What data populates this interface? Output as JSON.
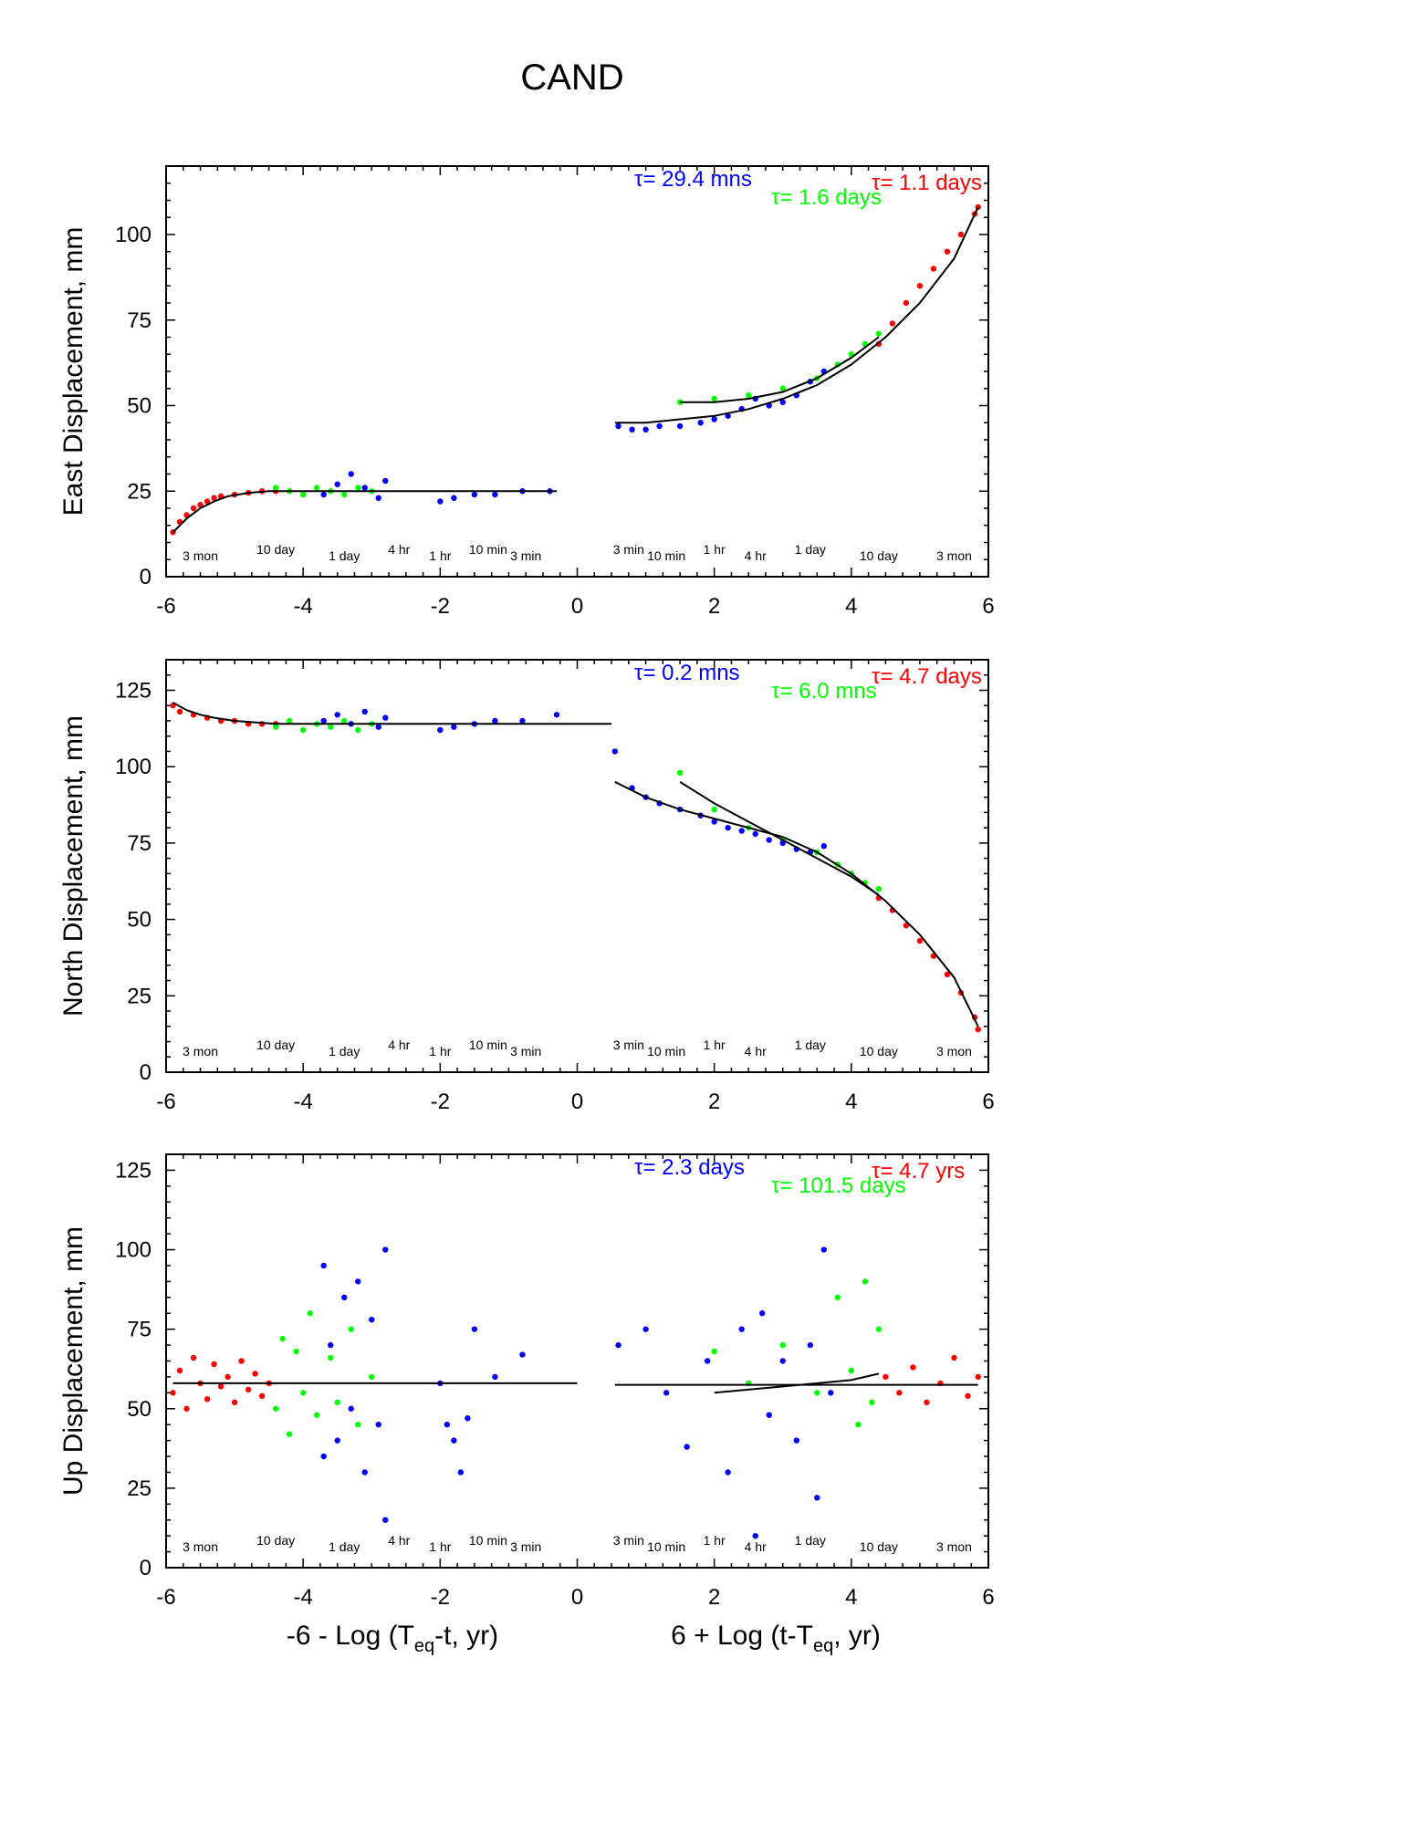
{
  "title": "CAND",
  "x_axis": {
    "left_label_parts": [
      "-6 - Log (T",
      "eq",
      "-t, yr)"
    ],
    "right_label_parts": [
      "6 + Log (t-T",
      "eq",
      ", yr)"
    ],
    "range": [
      -6,
      6
    ],
    "ticks": [
      -6,
      -4,
      -2,
      0,
      2,
      4,
      6
    ],
    "tick_labels": [
      "-6",
      "-4",
      "-2",
      "0",
      "2",
      "4",
      "6"
    ]
  },
  "time_markers": [
    {
      "x": -5.5,
      "label": "3 mon"
    },
    {
      "x": -4.4,
      "label": "10 day"
    },
    {
      "x": -3.4,
      "label": "1 day"
    },
    {
      "x": -2.6,
      "label": "4 hr"
    },
    {
      "x": -2.0,
      "label": "1 hr"
    },
    {
      "x": -1.3,
      "label": "10 min"
    },
    {
      "x": -0.75,
      "label": "3 min"
    },
    {
      "x": 0.75,
      "label": "3 min"
    },
    {
      "x": 1.3,
      "label": "10 min"
    },
    {
      "x": 2.0,
      "label": "1 hr"
    },
    {
      "x": 2.6,
      "label": "4 hr"
    },
    {
      "x": 3.4,
      "label": "1 day"
    },
    {
      "x": 4.4,
      "label": "10 day"
    },
    {
      "x": 5.5,
      "label": "3 mon"
    }
  ],
  "colors": {
    "red": "#ff0000",
    "green": "#00ff00",
    "blue": "#0000ff",
    "fit": "#000000"
  },
  "chart_data": [
    {
      "type": "scatter",
      "panel": "east",
      "ylabel": "East Displacement, mm",
      "ylim": [
        0,
        120
      ],
      "yticks": [
        0,
        25,
        50,
        75,
        100
      ],
      "tau_labels": [
        {
          "text": "τ= 29.4 mns",
          "color": "blue"
        },
        {
          "text": "τ= 1.6 days",
          "color": "green"
        },
        {
          "text": "τ= 1.1 days",
          "color": "red"
        }
      ],
      "series": [
        {
          "color": "red",
          "x": [
            -5.9,
            -5.8,
            -5.7,
            -5.6,
            -5.5,
            -5.4,
            -5.3,
            -5.2,
            -5.0,
            -4.8,
            -4.6,
            -4.4,
            4.4,
            4.6,
            4.8,
            5.0,
            5.2,
            5.4,
            5.6,
            5.8,
            5.85
          ],
          "y": [
            13,
            16,
            18,
            20,
            21,
            22,
            23,
            23.5,
            24,
            24.5,
            25,
            25,
            68,
            74,
            80,
            85,
            90,
            95,
            100,
            106,
            108
          ]
        },
        {
          "color": "green",
          "x": [
            -4.4,
            -4.2,
            -4.0,
            -3.8,
            -3.6,
            -3.4,
            -3.2,
            -3.0,
            1.5,
            2.0,
            2.5,
            3.0,
            3.5,
            3.8,
            4.0,
            4.2,
            4.4
          ],
          "y": [
            26,
            25,
            24,
            26,
            25,
            24,
            26,
            25,
            51,
            52,
            53,
            55,
            58,
            62,
            65,
            68,
            71
          ]
        },
        {
          "color": "blue",
          "x": [
            -3.7,
            -3.5,
            -3.3,
            -3.1,
            -2.9,
            -2.8,
            -2.0,
            -1.8,
            -1.5,
            -1.2,
            -0.8,
            -0.4,
            0.6,
            0.8,
            1.0,
            1.2,
            1.5,
            1.8,
            2.0,
            2.2,
            2.4,
            2.6,
            2.8,
            3.0,
            3.2,
            3.4,
            3.6
          ],
          "y": [
            24,
            27,
            30,
            26,
            23,
            28,
            22,
            23,
            24,
            24,
            25,
            25,
            44,
            43,
            43,
            44,
            44,
            45,
            46,
            47,
            49,
            52,
            50,
            51,
            53,
            57,
            60
          ]
        }
      ],
      "fits": [
        {
          "x": [
            -5.9,
            -5.7,
            -5.5,
            -5.3,
            -5.1,
            -4.8,
            -4.5,
            -4.0,
            -3.0,
            -2.0,
            -1.0,
            -0.3
          ],
          "y": [
            13,
            17,
            20,
            22,
            23.5,
            24.5,
            25,
            25,
            25,
            25,
            25,
            25
          ]
        },
        {
          "x": [
            0.55,
            1.0,
            1.5,
            2.0,
            2.5,
            3.0,
            3.5,
            4.0,
            4.5,
            5.0,
            5.5,
            5.85
          ],
          "y": [
            45,
            45,
            46,
            47,
            49,
            52,
            56,
            62,
            70,
            80,
            93,
            108
          ]
        },
        {
          "x": [
            1.5,
            2.0,
            2.5,
            3.0,
            3.5,
            4.0,
            4.4
          ],
          "y": [
            51,
            51,
            52,
            54,
            58,
            64,
            70
          ]
        }
      ]
    },
    {
      "type": "scatter",
      "panel": "north",
      "ylabel": "North Displacement, mm",
      "ylim": [
        0,
        135
      ],
      "yticks": [
        0,
        25,
        50,
        75,
        100,
        125
      ],
      "tau_labels": [
        {
          "text": "τ= 0.2 mns",
          "color": "blue"
        },
        {
          "text": "τ= 6.0 mns",
          "color": "green"
        },
        {
          "text": "τ= 4.7 days",
          "color": "red"
        }
      ],
      "series": [
        {
          "color": "red",
          "x": [
            -5.9,
            -5.8,
            -5.6,
            -5.4,
            -5.2,
            -5.0,
            -4.8,
            -4.6,
            -4.4,
            4.4,
            4.6,
            4.8,
            5.0,
            5.2,
            5.4,
            5.6,
            5.8,
            5.85
          ],
          "y": [
            120,
            118,
            117,
            116,
            115,
            115,
            114,
            114,
            114,
            57,
            53,
            48,
            43,
            38,
            32,
            26,
            18,
            14
          ]
        },
        {
          "color": "green",
          "x": [
            -4.4,
            -4.2,
            -4.0,
            -3.8,
            -3.6,
            -3.4,
            -3.2,
            -3.0,
            1.5,
            2.0,
            2.5,
            3.0,
            3.5,
            3.8,
            4.0,
            4.2,
            4.4
          ],
          "y": [
            113,
            115,
            112,
            114,
            113,
            115,
            112,
            114,
            98,
            86,
            80,
            76,
            72,
            68,
            65,
            62,
            60
          ]
        },
        {
          "color": "blue",
          "x": [
            -3.7,
            -3.5,
            -3.3,
            -3.1,
            -2.9,
            -2.8,
            -2.0,
            -1.8,
            -1.5,
            -1.2,
            -0.8,
            -0.3,
            0.55,
            0.8,
            1.0,
            1.2,
            1.5,
            1.8,
            2.0,
            2.2,
            2.4,
            2.6,
            2.8,
            3.0,
            3.2,
            3.4,
            3.6
          ],
          "y": [
            115,
            117,
            114,
            118,
            113,
            116,
            112,
            113,
            114,
            115,
            115,
            117,
            105,
            93,
            90,
            88,
            86,
            84,
            82,
            80,
            79,
            78,
            76,
            75,
            73,
            72,
            74
          ]
        }
      ],
      "fits": [
        {
          "x": [
            -5.9,
            -5.7,
            -5.5,
            -5.3,
            -5.0,
            -4.7,
            -4.4,
            -4.0,
            -3.0,
            -2.0,
            -1.0,
            0.5
          ],
          "y": [
            121,
            118.5,
            117,
            116,
            115,
            114.5,
            114,
            114,
            114,
            114,
            114,
            114
          ]
        },
        {
          "x": [
            0.55,
            1.0,
            1.5,
            2.0,
            2.5,
            3.0,
            3.5,
            4.0,
            4.5,
            5.0,
            5.5,
            5.85
          ],
          "y": [
            95,
            90,
            86,
            83,
            80,
            77,
            72,
            65,
            56,
            45,
            31,
            15
          ]
        },
        {
          "x": [
            1.5,
            2.0,
            2.5,
            3.0,
            3.5,
            4.0,
            4.4
          ],
          "y": [
            95,
            88,
            82,
            76,
            70,
            64,
            58
          ]
        }
      ]
    },
    {
      "type": "scatter",
      "panel": "up",
      "ylabel": "Up Displacement, mm",
      "ylim": [
        0,
        130
      ],
      "yticks": [
        0,
        25,
        50,
        75,
        100,
        125
      ],
      "tau_labels": [
        {
          "text": "τ= 2.3 days",
          "color": "blue"
        },
        {
          "text": "τ= 101.5 days",
          "color": "green"
        },
        {
          "text": "τ= 4.7 yrs",
          "color": "red"
        }
      ],
      "series": [
        {
          "color": "red",
          "x": [
            -5.9,
            -5.8,
            -5.7,
            -5.6,
            -5.5,
            -5.4,
            -5.3,
            -5.2,
            -5.1,
            -5.0,
            -4.9,
            -4.8,
            -4.7,
            -4.6,
            -4.5,
            4.5,
            4.7,
            4.9,
            5.1,
            5.3,
            5.5,
            5.7,
            5.85
          ],
          "y": [
            55,
            62,
            50,
            66,
            58,
            53,
            64,
            57,
            60,
            52,
            65,
            56,
            61,
            54,
            58,
            60,
            55,
            63,
            52,
            58,
            66,
            54,
            60
          ]
        },
        {
          "color": "green",
          "x": [
            -4.4,
            -4.3,
            -4.2,
            -4.1,
            -4.0,
            -3.9,
            -3.8,
            -3.6,
            -3.5,
            -3.3,
            -3.2,
            -3.0,
            2.0,
            2.5,
            3.0,
            3.5,
            3.8,
            4.0,
            4.1,
            4.2,
            4.3,
            4.4
          ],
          "y": [
            50,
            72,
            42,
            68,
            55,
            80,
            48,
            66,
            52,
            75,
            45,
            60,
            68,
            58,
            70,
            55,
            85,
            62,
            45,
            90,
            52,
            75
          ]
        },
        {
          "color": "blue",
          "x": [
            -3.7,
            -3.7,
            -3.6,
            -3.5,
            -3.4,
            -3.3,
            -3.2,
            -3.1,
            -3.0,
            -2.9,
            -2.8,
            -2.8,
            -2.0,
            -1.9,
            -1.8,
            -1.7,
            -1.6,
            -1.5,
            -1.2,
            -0.8,
            0.6,
            1.0,
            1.3,
            1.6,
            1.9,
            2.2,
            2.4,
            2.6,
            2.7,
            2.8,
            3.0,
            3.2,
            3.4,
            3.5,
            3.6,
            3.7
          ],
          "y": [
            95,
            35,
            70,
            40,
            85,
            50,
            90,
            30,
            78,
            45,
            100,
            15,
            58,
            45,
            40,
            30,
            47,
            75,
            60,
            67,
            70,
            75,
            55,
            38,
            65,
            30,
            75,
            10,
            80,
            48,
            65,
            40,
            70,
            22,
            100,
            55
          ]
        }
      ],
      "fits": [
        {
          "x": [
            -5.9,
            -4.0,
            -2.0,
            0.0
          ],
          "y": [
            58,
            58,
            58,
            58
          ]
        },
        {
          "x": [
            0.55,
            2.0,
            4.0,
            5.85
          ],
          "y": [
            57.5,
            57.5,
            57.5,
            57.5
          ]
        },
        {
          "x": [
            2.0,
            3.0,
            4.0,
            4.4
          ],
          "y": [
            55,
            57,
            59,
            61
          ]
        }
      ]
    }
  ]
}
